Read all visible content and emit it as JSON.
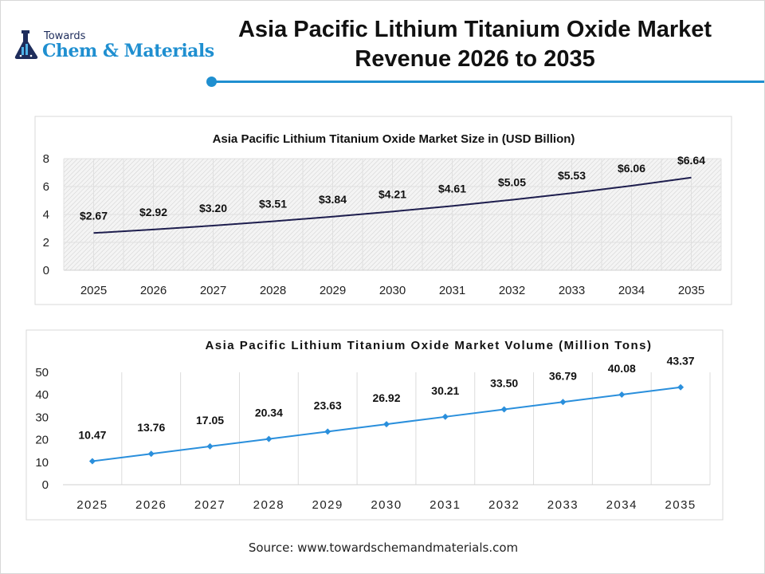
{
  "header": {
    "logo_top": "Towards",
    "logo_main": "Chem & Materials",
    "title_line1": "Asia Pacific Lithium Titanium Oxide Market",
    "title_line2": "Revenue 2026 to 2035",
    "accent_color": "#1f8fd0"
  },
  "chart_data": [
    {
      "type": "line",
      "title": "Asia Pacific Lithium Titanium Oxide Market Size in (USD Billion)",
      "categories": [
        "2025",
        "2026",
        "2027",
        "2028",
        "2029",
        "2030",
        "2031",
        "2032",
        "2033",
        "2034",
        "2035"
      ],
      "values": [
        2.67,
        2.92,
        3.2,
        3.51,
        3.84,
        4.21,
        4.61,
        5.05,
        5.53,
        6.06,
        6.64
      ],
      "data_labels": [
        "$2.67",
        "$2.92",
        "$3.20",
        "$3.51",
        "$3.84",
        "$4.21",
        "$4.61",
        "$5.05",
        "$5.53",
        "$6.06",
        "$6.64"
      ],
      "yticks": [
        "0",
        "2",
        "4",
        "6",
        "8"
      ],
      "ylim": [
        0,
        8
      ],
      "grid": true,
      "background": "hatched",
      "line_color": "#1e1e4e",
      "markers": false
    },
    {
      "type": "line",
      "title": "Asia Pacific Lithium Titanium Oxide Market Volume (Million Tons)",
      "categories": [
        "2025",
        "2026",
        "2027",
        "2028",
        "2029",
        "2030",
        "2031",
        "2032",
        "2033",
        "2034",
        "2035"
      ],
      "values": [
        10.47,
        13.76,
        17.05,
        20.34,
        23.63,
        26.92,
        30.21,
        33.5,
        36.79,
        40.08,
        43.37
      ],
      "data_labels": [
        "10.47",
        "13.76",
        "17.05",
        "20.34",
        "23.63",
        "26.92",
        "30.21",
        "33.50",
        "36.79",
        "40.08",
        "43.37"
      ],
      "yticks": [
        "0",
        "10",
        "20",
        "30",
        "40",
        "50"
      ],
      "ylim": [
        0,
        50
      ],
      "grid": "vertical",
      "line_color": "#2a8fdc",
      "markers": "diamond"
    }
  ],
  "footer": {
    "source": "Source: www.towardschemandmaterials.com"
  }
}
